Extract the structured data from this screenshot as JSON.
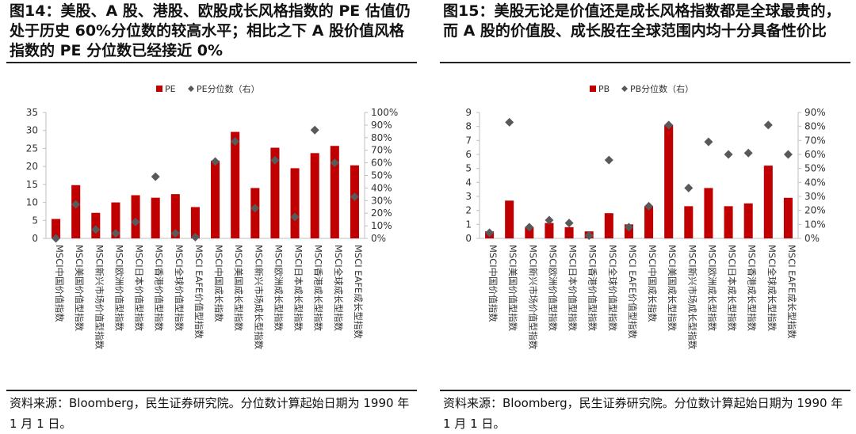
{
  "panels": [
    {
      "title": "图14：美股、A 股、港股、欧股成长风格指数的 PE 估值仍处于历史 60%分位数的较高水平；相比之下 A 股价值风格指数的 PE 分位数已经接近 0%",
      "source": "资料来源：Bloomberg，民生证券研究院。分位数计算起始日期为 1990 年 1 月 1 日。",
      "chart_data": {
        "type": "bar",
        "legend_position": "top-center",
        "grid": false,
        "colors": {
          "bar": "#c00000",
          "marker": "#595959"
        },
        "categories": [
          "MSCI中国价值指数",
          "MSCI美国价值型指数",
          "MSCI新兴市场价值型指数",
          "MSCI欧洲价值型指数",
          "MSCI日本价值型指数",
          "MSCI香港价值型指数",
          "MSCI全球价值型指数",
          "MSCI EAFE价值型指数",
          "MSCI中国成长指数",
          "MSCI美国成长型指数",
          "MSCI新兴市场成长型指数",
          "MSCI欧洲成长型指数",
          "MSCI日本成长型指数",
          "MSCI香港成长型指数",
          "MSCI全球成长型指数",
          "MSCI EAFE成长型指数"
        ],
        "series": [
          {
            "name": "PE",
            "type": "bar",
            "axis": "left",
            "values": [
              5.4,
              14.8,
              7.1,
              10.0,
              12.0,
              11.3,
              12.3,
              8.7,
              21.6,
              29.6,
              14.0,
              25.2,
              19.5,
              23.7,
              25.7,
              20.3
            ]
          },
          {
            "name": "PE分位数（右）",
            "type": "scatter",
            "marker": "diamond",
            "axis": "right",
            "values": [
              0,
              27,
              7,
              4,
              13,
              49,
              4,
              1,
              61,
              77,
              24,
              62,
              17,
              86,
              60,
              33
            ]
          }
        ],
        "y_left": {
          "min": 0,
          "max": 35,
          "ticks": [
            "0",
            "5",
            "10",
            "15",
            "20",
            "25",
            "30",
            "35"
          ]
        },
        "y_right": {
          "min": 0,
          "max": 100,
          "ticks": [
            "0%",
            "10%",
            "20%",
            "30%",
            "40%",
            "50%",
            "60%",
            "70%",
            "80%",
            "90%",
            "100%"
          ]
        }
      }
    },
    {
      "title": "图15：美股无论是价值还是成长风格指数都是全球最贵的，而 A 股的价值股、成长股在全球范围内均十分具备性价比",
      "source": "资料来源：Bloomberg，民生证券研究院。分位数计算起始日期为 1990 年 1 月 1 日。",
      "chart_data": {
        "type": "bar",
        "legend_position": "top-center",
        "grid": false,
        "colors": {
          "bar": "#c00000",
          "marker": "#595959"
        },
        "categories": [
          "MSCI中国价值指数",
          "MSCI美国价值型指数",
          "MSCI新兴市场价值型指数",
          "MSCI欧洲价值型指数",
          "MSCI日本价值型指数",
          "MSCI香港价值型指数",
          "MSCI全球价值型指数",
          "MSCI EAFE价值型指数",
          "MSCI中国成长指数",
          "MSCI美国成长型指数",
          "MSCI新兴市场成长型指数",
          "MSCI欧洲成长型指数",
          "MSCI日本成长型指数",
          "MSCI香港成长型指数",
          "MSCI全球成长型指数",
          "MSCI EAFE成长型指数"
        ],
        "series": [
          {
            "name": "PB",
            "type": "bar",
            "axis": "left",
            "values": [
              0.5,
              2.7,
              0.8,
              1.1,
              0.8,
              0.5,
              1.8,
              1.0,
              2.3,
              8.1,
              2.3,
              3.6,
              2.3,
              2.5,
              5.2,
              2.9
            ]
          },
          {
            "name": "PB分位数（右）",
            "type": "scatter",
            "marker": "diamond",
            "axis": "right",
            "values": [
              4,
              83,
              8,
              13,
              11,
              2,
              56,
              8,
              23,
              81,
              36,
              69,
              60,
              61,
              81,
              60
            ]
          }
        ],
        "y_left": {
          "min": 0,
          "max": 9,
          "ticks": [
            "0",
            "1",
            "2",
            "3",
            "4",
            "5",
            "6",
            "7",
            "8",
            "9"
          ]
        },
        "y_right": {
          "min": 0,
          "max": 90,
          "ticks": [
            "0%",
            "10%",
            "20%",
            "30%",
            "40%",
            "50%",
            "60%",
            "70%",
            "80%",
            "90%"
          ]
        }
      }
    }
  ]
}
